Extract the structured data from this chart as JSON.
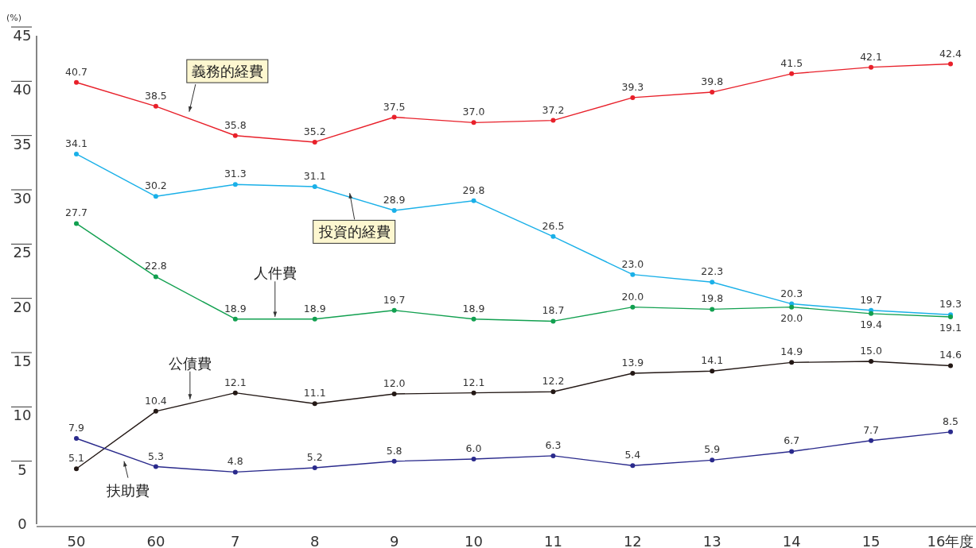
{
  "chart_data": {
    "type": "line",
    "ylabel": "(%)",
    "categories": [
      "50",
      "60",
      "7",
      "8",
      "9",
      "10",
      "11",
      "12",
      "13",
      "14",
      "15",
      "16年度"
    ],
    "series": [
      {
        "name": "義務的経費",
        "color": "#e8202a",
        "values": [
          40.7,
          38.5,
          35.8,
          35.2,
          37.5,
          37.0,
          37.2,
          39.3,
          39.8,
          41.5,
          42.1,
          42.4
        ],
        "value_labels": [
          "40.7",
          "38.5",
          "35.8",
          "35.2",
          "37.5",
          "37.0",
          "37.2",
          "39.3",
          "39.8",
          "41.5",
          "42.1",
          "42.4"
        ]
      },
      {
        "name": "投資的経費",
        "color": "#1ab0e8",
        "values": [
          34.1,
          30.2,
          31.3,
          31.1,
          28.9,
          29.8,
          26.5,
          23.0,
          22.3,
          20.3,
          19.7,
          19.3
        ],
        "value_labels": [
          "34.1",
          "30.2",
          "31.3",
          "31.1",
          "28.9",
          "29.8",
          "26.5",
          "23.0",
          "22.3",
          "20.3",
          "19.7",
          "19.3"
        ]
      },
      {
        "name": "人件費",
        "color": "#12a050",
        "values": [
          27.7,
          22.8,
          18.9,
          18.9,
          19.7,
          18.9,
          18.7,
          20.0,
          19.8,
          20.0,
          19.4,
          19.1
        ],
        "value_labels": [
          "27.7",
          "22.8",
          "18.9",
          "18.9",
          "19.7",
          "18.9",
          "18.7",
          "20.0",
          "19.8",
          "20.0",
          "19.4",
          "19.1"
        ]
      },
      {
        "name": "公債費",
        "color": "#231815",
        "values": [
          5.1,
          10.4,
          12.1,
          11.1,
          12.0,
          12.1,
          12.2,
          13.9,
          14.1,
          14.9,
          15.0,
          14.6
        ],
        "value_labels": [
          "5.1",
          "10.4",
          "12.1",
          "11.1",
          "12.0",
          "12.1",
          "12.2",
          "13.9",
          "14.1",
          "14.9",
          "15.0",
          "14.6"
        ]
      },
      {
        "name": "扶助費",
        "color": "#2a2a8c",
        "values": [
          7.9,
          5.3,
          4.8,
          5.2,
          5.8,
          6.0,
          6.3,
          5.4,
          5.9,
          6.7,
          7.7,
          8.5
        ],
        "value_labels": [
          "7.9",
          "5.3",
          "4.8",
          "5.2",
          "5.8",
          "6.0",
          "6.3",
          "5.4",
          "5.9",
          "6.7",
          "7.7",
          "8.5"
        ]
      }
    ],
    "ylim": [
      0,
      45
    ],
    "yticks": [
      0,
      5,
      10,
      15,
      20,
      25,
      30,
      35,
      40,
      45
    ],
    "marker": "circle",
    "line_style": "solid"
  }
}
